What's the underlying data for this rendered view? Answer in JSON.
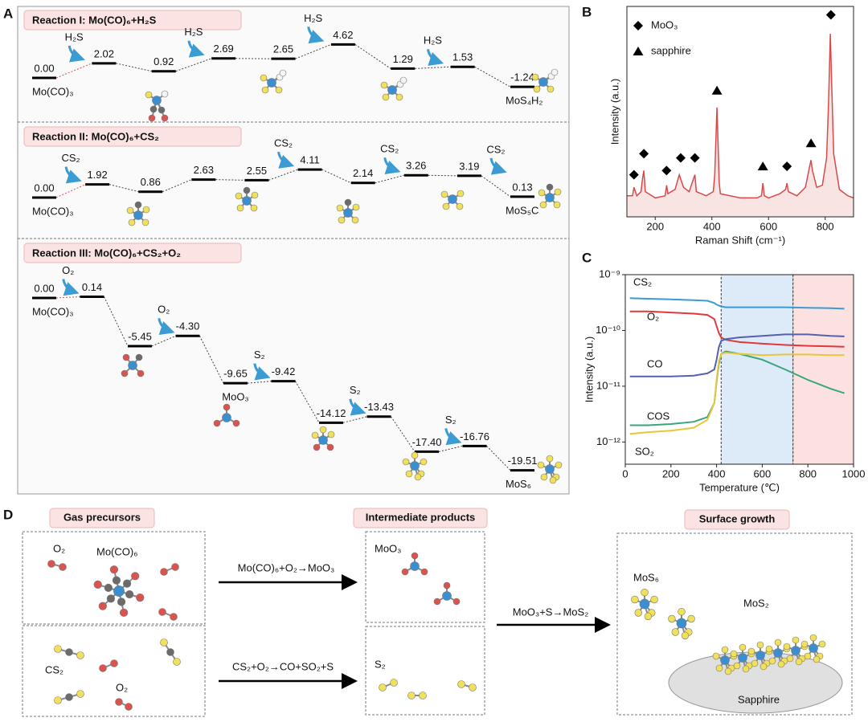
{
  "panel_labels": [
    "A",
    "B",
    "C",
    "D"
  ],
  "energy_diagram": {
    "gas_color": "#3b9bd3",
    "product_color": "#d9393a",
    "reactions": [
      {
        "title": "Reaction I: Mo(CO)₆+H₂S",
        "values": [
          0,
          2.02,
          0.92,
          2.69,
          2.65,
          4.62,
          1.29,
          1.53,
          -1.24
        ],
        "value_labels": [
          "0.00",
          "2.02",
          "0.92",
          "2.69",
          "2.65",
          "4.62",
          "1.29",
          "1.53",
          "-1.24"
        ],
        "gases": [
          "H₂S",
          null,
          "H₂S",
          null,
          "H₂S",
          null,
          "H₂S",
          null
        ],
        "species": [
          "Mo(CO)₃",
          null,
          null,
          null,
          null,
          null,
          null,
          null,
          "MoS₄H₂"
        ]
      },
      {
        "title": "Reaction II: Mo(CO)₆+CS₂",
        "values": [
          0,
          1.92,
          0.86,
          2.63,
          2.55,
          4.11,
          2.14,
          3.26,
          3.19,
          0.13
        ],
        "value_labels": [
          "0.00",
          "1.92",
          "0.86",
          "2.63",
          "2.55",
          "4.11",
          "2.14",
          "3.26",
          "3.19",
          "0.13"
        ],
        "gases": [
          "CS₂",
          null,
          null,
          null,
          "CS₂",
          null,
          "CS₂",
          null,
          "CS₂"
        ],
        "species": [
          "Mo(CO)₃",
          null,
          null,
          null,
          null,
          null,
          null,
          null,
          null,
          "MoS₅C"
        ]
      },
      {
        "title": "Reaction III: Mo(CO)₆+CS₂+O₂",
        "values": [
          0,
          0.14,
          -5.45,
          -4.3,
          -9.65,
          -9.42,
          -14.12,
          -13.43,
          -17.4,
          -16.76,
          -19.51
        ],
        "value_labels": [
          "0.00",
          "0.14",
          "-5.45",
          "-4.30",
          "-9.65",
          "-9.42",
          "-14.12",
          "-13.43",
          "-17.40",
          "-16.76",
          "-19.51"
        ],
        "gases": [
          "O₂",
          null,
          "O₂",
          null,
          "S₂",
          null,
          "S₂",
          null,
          "S₂",
          null
        ],
        "species": [
          "Mo(CO)₃",
          null,
          null,
          null,
          "MoO₃",
          null,
          null,
          null,
          null,
          null,
          "MoS₆"
        ]
      }
    ]
  },
  "chart_data": [
    {
      "type": "line",
      "x_label": "Raman Shift (cm⁻¹)",
      "y_label": "Intensity (a.u.)",
      "xlim": [
        100,
        900
      ],
      "xticks": [
        200,
        400,
        600,
        800
      ],
      "ylim": [
        0,
        100
      ],
      "color": "#d9494a",
      "fill": true,
      "x": [
        100,
        120,
        125,
        130,
        135,
        150,
        155,
        160,
        165,
        200,
        235,
        240,
        245,
        270,
        285,
        300,
        320,
        335,
        340,
        345,
        380,
        405,
        410,
        418,
        426,
        430,
        500,
        560,
        575,
        580,
        585,
        600,
        640,
        660,
        665,
        670,
        700,
        730,
        745,
        750,
        755,
        770,
        790,
        805,
        812,
        818,
        824,
        830,
        850,
        880,
        900
      ],
      "values": [
        10,
        10,
        14,
        12,
        10,
        12,
        18,
        22,
        12,
        9,
        10,
        15,
        11,
        13,
        20,
        14,
        12,
        18,
        20,
        12,
        10,
        12,
        20,
        52,
        16,
        11,
        9,
        9,
        10,
        16,
        10,
        9,
        11,
        13,
        16,
        12,
        10,
        14,
        24,
        27,
        22,
        14,
        15,
        28,
        55,
        87,
        58,
        30,
        13,
        10,
        9
      ],
      "markers": [
        {
          "name": "MoO₃",
          "shape": "diamond",
          "x": [
            125,
            160,
            240,
            290,
            340,
            665,
            820
          ],
          "values": [
            20,
            30,
            22,
            28,
            28,
            24,
            96
          ]
        },
        {
          "name": "sapphire",
          "shape": "triangle",
          "x": [
            418,
            580,
            750
          ],
          "values": [
            60,
            24,
            35
          ]
        }
      ]
    },
    {
      "type": "line",
      "log_y": true,
      "x_label": "Temperature (℃)",
      "y_label": "Intensity (a.u.)",
      "xlim": [
        0,
        1000
      ],
      "xticks": [
        0,
        200,
        400,
        600,
        800,
        1000
      ],
      "ylim": [
        4e-13,
        1e-09
      ],
      "yticks": [
        {
          "value": 1e-09,
          "label": "10⁻⁹"
        },
        {
          "value": 1e-10,
          "label": "10⁻¹⁰"
        },
        {
          "value": 1e-11,
          "label": "10⁻¹¹"
        },
        {
          "value": 1e-12,
          "label": "10⁻¹²"
        }
      ],
      "regions": [
        {
          "xlim": [
            420,
            735
          ],
          "color": "#dcebf7"
        },
        {
          "xlim": [
            735,
            1000
          ],
          "color": "#fce1e1"
        }
      ],
      "x": [
        20,
        100,
        200,
        300,
        360,
        390,
        400,
        410,
        420,
        440,
        500,
        600,
        700,
        800,
        900,
        960
      ],
      "series": [
        {
          "name": "CS₂",
          "color": "#3b9bd3",
          "values": [
            3.8e-10,
            3.7e-10,
            3.6e-10,
            3.5e-10,
            3.4e-10,
            3.1e-10,
            2.9e-10,
            2.8e-10,
            2.7e-10,
            2.6e-10,
            2.6e-10,
            2.6e-10,
            2.6e-10,
            2.55e-10,
            2.5e-10,
            2.45e-10
          ]
        },
        {
          "name": "O₂",
          "color": "#e0393c",
          "values": [
            2.2e-10,
            2.2e-10,
            2.1e-10,
            2e-10,
            1.9e-10,
            1.6e-10,
            1.2e-10,
            9e-11,
            7.5e-11,
            6.8e-11,
            6.2e-11,
            5.8e-11,
            5.5e-11,
            5.3e-11,
            5.2e-11,
            5.1e-11
          ]
        },
        {
          "name": "CO",
          "color": "#5560b0",
          "values": [
            1.5e-11,
            1.5e-11,
            1.5e-11,
            1.55e-11,
            1.7e-11,
            2e-11,
            3e-11,
            5e-11,
            6.5e-11,
            7e-11,
            7.5e-11,
            8e-11,
            8.5e-11,
            8.5e-11,
            8e-11,
            7.8e-11
          ]
        },
        {
          "name": "COS",
          "color": "#3aa57a",
          "values": [
            2e-12,
            2e-12,
            2.1e-12,
            2.3e-12,
            2.8e-12,
            5e-12,
            1.2e-11,
            2.5e-11,
            3.8e-11,
            4.2e-11,
            3.8e-11,
            3e-11,
            2e-11,
            1.3e-11,
            9e-12,
            7.5e-12
          ]
        },
        {
          "name": "SO₂",
          "color": "#e8c53a",
          "values": [
            1.4e-12,
            1.5e-12,
            1.6e-12,
            1.8e-12,
            2.5e-12,
            5e-12,
            1.3e-11,
            2.8e-11,
            3.8e-11,
            4e-11,
            3.8e-11,
            3.6e-11,
            3.7e-11,
            3.7e-11,
            3.6e-11,
            3.6e-11
          ]
        }
      ]
    }
  ],
  "schematic": {
    "headers": [
      "Gas precursors",
      "Intermediate products",
      "Surface growth"
    ],
    "reactions": [
      "Mo(CO)₆+O₂→MoO₃",
      "CS₂+O₂→CO+SO₂+S",
      "MoO₃+S→MoS₂"
    ],
    "labels": [
      "O₂",
      "Mo(CO)₆",
      "CS₂",
      "O₂",
      "MoO₃",
      "S₂",
      "MoS₆",
      "MoS₂",
      "Sapphire"
    ]
  }
}
